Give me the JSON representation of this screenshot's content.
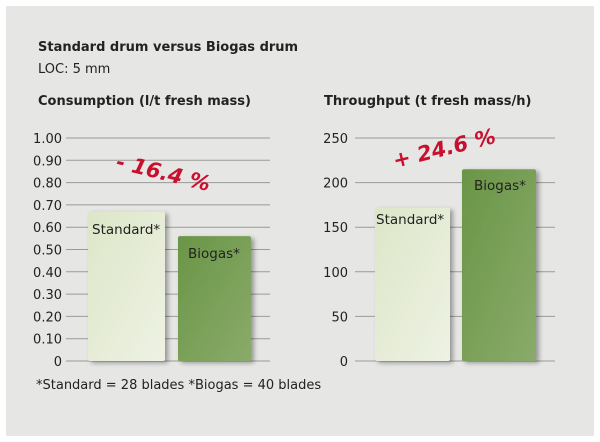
{
  "title": "Standard drum versus Biogas drum",
  "subtitle": "LOC: 5 mm",
  "footnote": "*Standard = 28 blades  *Biogas = 40 blades",
  "chart_data": [
    {
      "type": "bar",
      "title": "Consumption (l/t fresh mass)",
      "categories": [
        "Standard*",
        "Biogas*"
      ],
      "values": [
        0.67,
        0.56
      ],
      "ylim": [
        0,
        1.0
      ],
      "yticks": [
        "0",
        "0.10",
        "0.20",
        "0.30",
        "0.40",
        "0.50",
        "0.60",
        "0.70",
        "0.80",
        "0.90",
        "1.00"
      ],
      "annotation": "- 16.4 %",
      "grid": true,
      "colors": [
        "#d9e3c4",
        "#6e9a4c"
      ],
      "annotation_color": "#c8102e"
    },
    {
      "type": "bar",
      "title": "Throughput (t fresh mass/h)",
      "categories": [
        "Standard*",
        "Biogas*"
      ],
      "values": [
        172,
        215
      ],
      "ylim": [
        0,
        250
      ],
      "yticks": [
        "0",
        "50",
        "100",
        "150",
        "200",
        "250"
      ],
      "annotation": "+ 24.6 %",
      "grid": true,
      "colors": [
        "#d9e3c4",
        "#6e9a4c"
      ],
      "annotation_color": "#c8102e"
    }
  ]
}
